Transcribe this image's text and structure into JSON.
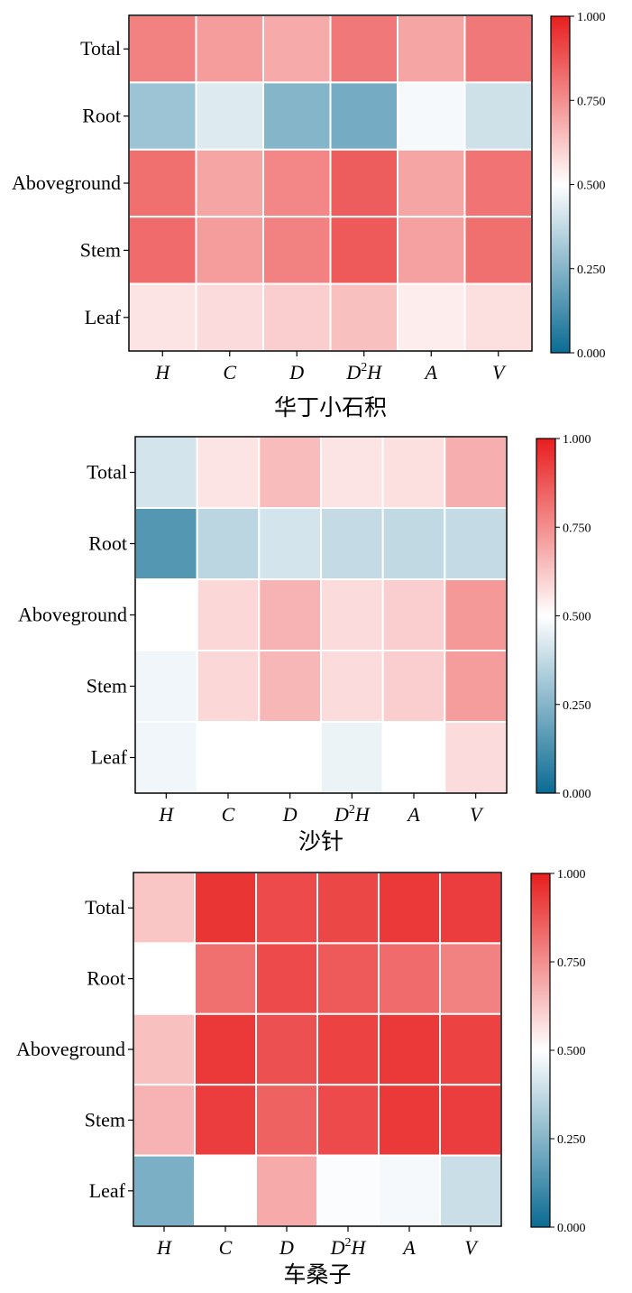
{
  "colors": {
    "scale_low": "#0b6b93",
    "scale_mid": "#ffffff",
    "scale_high": "#e81e1e",
    "cell_border": "#ffffff",
    "frame": "#000000"
  },
  "colorbar": {
    "ticks": [
      "0.000",
      "0.250",
      "0.500",
      "0.750",
      "1.000"
    ],
    "tick_values": [
      0,
      0.25,
      0.5,
      0.75,
      1.0
    ]
  },
  "chart_data": [
    {
      "type": "heatmap",
      "title": "华丁小石积",
      "rows": [
        "Total",
        "Root",
        "Aboveground",
        "Stem",
        "Leaf"
      ],
      "columns": [
        "H",
        "C",
        "D",
        "D2H",
        "A",
        "V"
      ],
      "column_labels": [
        {
          "base": "H",
          "sup": ""
        },
        {
          "base": "C",
          "sup": ""
        },
        {
          "base": "D",
          "sup": ""
        },
        {
          "base": "D",
          "sup": "2",
          "tail": "H"
        },
        {
          "base": "A",
          "sup": ""
        },
        {
          "base": "V",
          "sup": ""
        }
      ],
      "clim": [
        0,
        1
      ],
      "values": [
        [
          0.78,
          0.72,
          0.69,
          0.8,
          0.7,
          0.8
        ],
        [
          0.3,
          0.43,
          0.25,
          0.22,
          0.48,
          0.4
        ],
        [
          0.82,
          0.7,
          0.77,
          0.86,
          0.7,
          0.81
        ],
        [
          0.83,
          0.72,
          0.78,
          0.87,
          0.71,
          0.82
        ],
        [
          0.56,
          0.58,
          0.61,
          0.64,
          0.54,
          0.57
        ]
      ]
    },
    {
      "type": "heatmap",
      "title": "沙针",
      "rows": [
        "Total",
        "Root",
        "Aboveground",
        "Stem",
        "Leaf"
      ],
      "columns": [
        "H",
        "C",
        "D",
        "D2H",
        "A",
        "V"
      ],
      "column_labels": [
        {
          "base": "H",
          "sup": ""
        },
        {
          "base": "C",
          "sup": ""
        },
        {
          "base": "D",
          "sup": ""
        },
        {
          "base": "D",
          "sup": "2",
          "tail": "H"
        },
        {
          "base": "A",
          "sup": ""
        },
        {
          "base": "V",
          "sup": ""
        }
      ],
      "clim": [
        0,
        1
      ],
      "values": [
        [
          0.41,
          0.56,
          0.65,
          0.56,
          0.57,
          0.68
        ],
        [
          0.15,
          0.36,
          0.41,
          0.38,
          0.37,
          0.38
        ],
        [
          0.5,
          0.59,
          0.67,
          0.58,
          0.61,
          0.73
        ],
        [
          0.47,
          0.59,
          0.66,
          0.58,
          0.61,
          0.72
        ],
        [
          0.47,
          0.5,
          0.5,
          0.46,
          0.5,
          0.58
        ]
      ]
    },
    {
      "type": "heatmap",
      "title": "车桑子",
      "rows": [
        "Total",
        "Root",
        "Aboveground",
        "Stem",
        "Leaf"
      ],
      "columns": [
        "H",
        "C",
        "D",
        "D2H",
        "A",
        "V"
      ],
      "column_labels": [
        {
          "base": "H",
          "sup": ""
        },
        {
          "base": "C",
          "sup": ""
        },
        {
          "base": "D",
          "sup": ""
        },
        {
          "base": "D",
          "sup": "2",
          "tail": "H"
        },
        {
          "base": "A",
          "sup": ""
        },
        {
          "base": "V",
          "sup": ""
        }
      ],
      "clim": [
        0,
        1
      ],
      "values": [
        [
          0.63,
          0.95,
          0.9,
          0.91,
          0.94,
          0.93
        ],
        [
          0.5,
          0.82,
          0.9,
          0.87,
          0.83,
          0.78
        ],
        [
          0.64,
          0.94,
          0.89,
          0.92,
          0.94,
          0.92
        ],
        [
          0.67,
          0.93,
          0.85,
          0.9,
          0.94,
          0.93
        ],
        [
          0.23,
          0.5,
          0.69,
          0.49,
          0.48,
          0.39
        ]
      ]
    }
  ]
}
